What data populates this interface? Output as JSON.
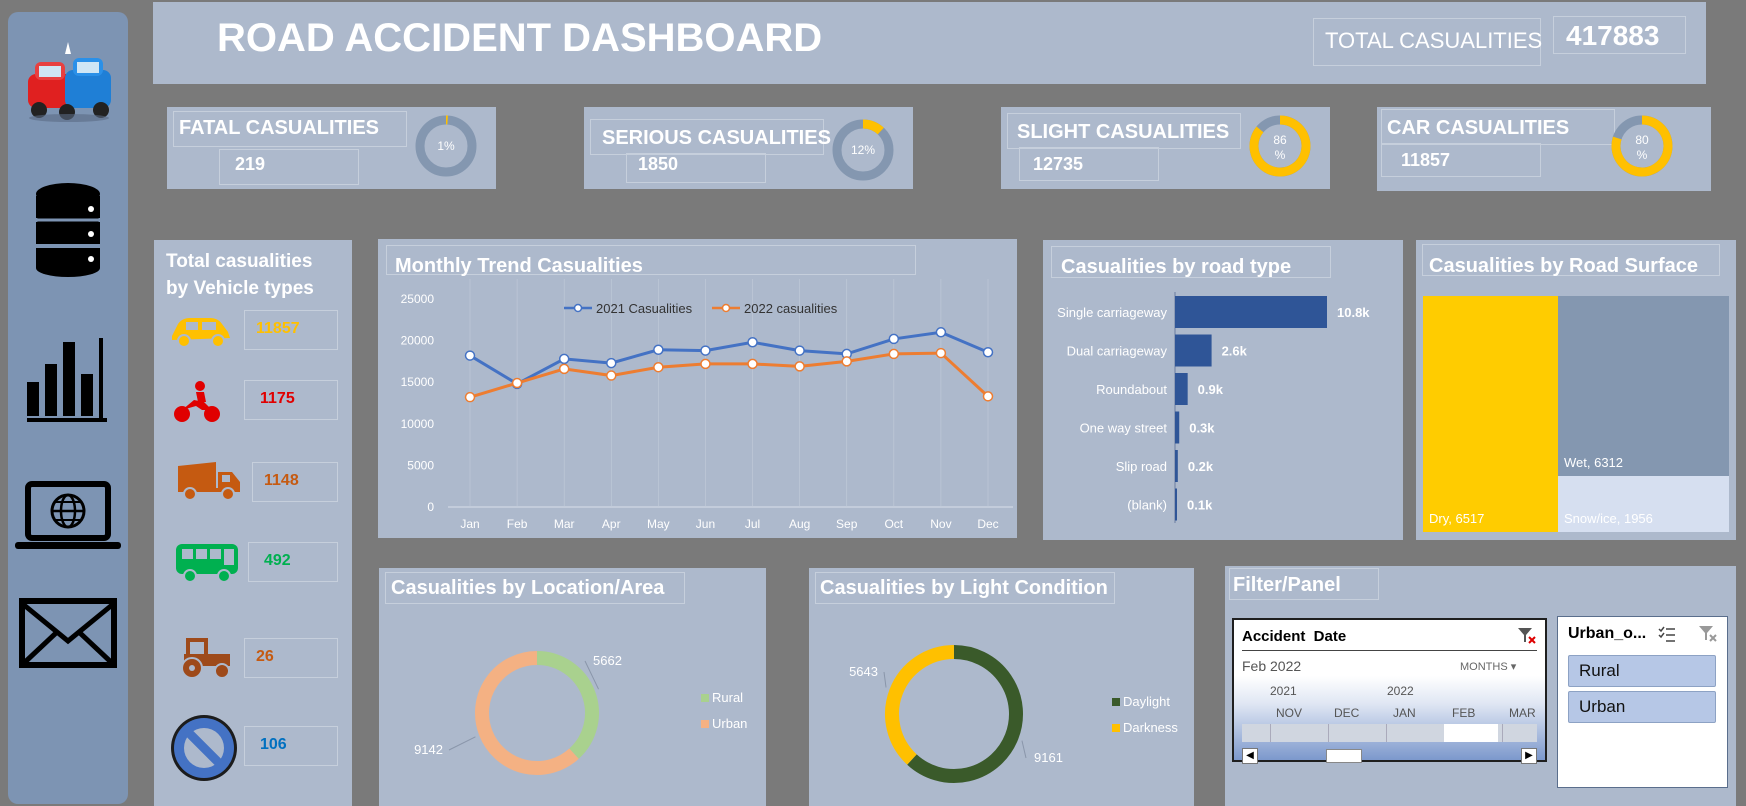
{
  "header": {
    "title": "ROAD ACCIDENT DASHBOARD",
    "total_label": "TOTAL CASUALITIES",
    "total_value": "417883"
  },
  "kpis": [
    {
      "title": "FATAL CASUALITIES",
      "value": "219",
      "pct_label": "1%",
      "pct": 1
    },
    {
      "title": "SERIOUS CASUALITIES",
      "value": "1850",
      "pct_label": "12%",
      "pct": 12
    },
    {
      "title": "SLIGHT CASUALITIES",
      "value": "12735",
      "pct_label": "86 %",
      "pct": 86
    },
    {
      "title": "CAR CASUALITIES",
      "value": "11857",
      "pct_label": "80 %",
      "pct": 80
    }
  ],
  "vehicle_panel": {
    "title_line1": "Total casualities",
    "title_line2": "by Vehicle types",
    "items": [
      {
        "icon": "car-icon",
        "value": "11857",
        "color": "#ffc000"
      },
      {
        "icon": "motorcycle-icon",
        "value": "1175",
        "color": "#e00000"
      },
      {
        "icon": "truck-icon",
        "value": "1148",
        "color": "#c55a11"
      },
      {
        "icon": "bus-icon",
        "value": "492",
        "color": "#00b050"
      },
      {
        "icon": "tractor-icon",
        "value": "26",
        "color": "#c55a11"
      },
      {
        "icon": "no-entry-icon",
        "value": "106",
        "color": "#0070c0"
      }
    ]
  },
  "sidebar": {
    "icons": [
      "crash-cars-icon",
      "database-icon",
      "bar-chart-icon",
      "laptop-globe-icon",
      "envelope-icon"
    ]
  },
  "monthly_trend": {
    "title": "Monthly Trend Casualities",
    "chart_data": {
      "type": "line",
      "x": [
        "Jan",
        "Feb",
        "Mar",
        "Apr",
        "May",
        "Jun",
        "Jul",
        "Aug",
        "Sep",
        "Oct",
        "Nov",
        "Dec"
      ],
      "ylim": [
        0,
        25000
      ],
      "yticks": [
        "25000",
        "20000",
        "15000",
        "10000",
        "5000",
        "0"
      ],
      "series": [
        {
          "name": "2021 Casualities",
          "color": "#4472c4",
          "values": [
            18200,
            14800,
            17800,
            17300,
            18900,
            18800,
            19800,
            18800,
            18400,
            20200,
            21000,
            18600
          ]
        },
        {
          "name": "2022 casualities",
          "color": "#ed7d31",
          "values": [
            13200,
            14900,
            16600,
            15800,
            16800,
            17200,
            17200,
            16900,
            17500,
            18400,
            18500,
            13300
          ]
        }
      ]
    }
  },
  "road_type": {
    "title": "Casualities by road type",
    "chart_data": {
      "type": "bar",
      "categories": [
        "Single carriageway",
        "Dual carriageway",
        "Roundabout",
        "One way street",
        "Slip road",
        "(blank)"
      ],
      "values": [
        10.8,
        2.6,
        0.9,
        0.3,
        0.2,
        0.1
      ],
      "labels": [
        "10.8k",
        "2.6k",
        "0.9k",
        "0.3k",
        "0.2k",
        "0.1k"
      ],
      "color": "#2f5597"
    }
  },
  "road_surface": {
    "title": "Casualities by Road Surface",
    "chart_data": {
      "type": "treemap",
      "items": [
        {
          "label": "Dry, 6517",
          "value": 6517,
          "color": "#ffcc00"
        },
        {
          "label": "Wet, 6312",
          "value": 6312,
          "color": "#8497b0"
        },
        {
          "label": "Snow/ice, 1956",
          "value": 1956,
          "color": "#d6dff0"
        }
      ]
    }
  },
  "location": {
    "title": "Casualities by Location/Area",
    "chart_data": {
      "type": "pie",
      "categories": [
        "Rural",
        "Urban"
      ],
      "values": [
        5662,
        9142
      ],
      "labels": [
        "5662",
        "9142"
      ],
      "colors": [
        "#a9d18e",
        "#f4b183"
      ]
    }
  },
  "light": {
    "title": "Casualities by Light Condition",
    "chart_data": {
      "type": "pie",
      "categories": [
        "Daylight",
        "Darkness"
      ],
      "values": [
        9161,
        5643
      ],
      "labels": [
        "9161",
        "5643"
      ],
      "colors": [
        "#3a5a2a",
        "#ffc000"
      ]
    }
  },
  "filter_panel": {
    "title": "Filter/Panel",
    "date_slicer": {
      "title": "Accident  Date",
      "selected": "Feb 2022",
      "granularity": "MONTHS",
      "years": [
        "2021",
        "2022"
      ],
      "months": [
        "NOV",
        "DEC",
        "JAN",
        "FEB",
        "MAR"
      ]
    },
    "area_slicer": {
      "title": "Urban_o...",
      "options": [
        "Rural",
        "Urban"
      ]
    }
  }
}
